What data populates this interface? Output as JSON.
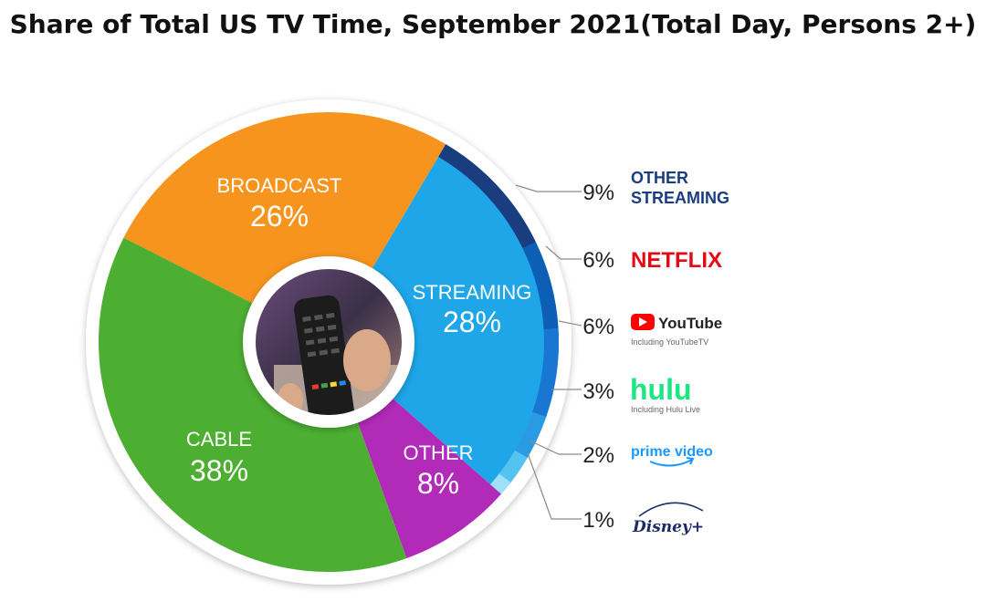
{
  "title": "Share of Total US TV Time, September 2021(Total Day, Persons 2+)",
  "chart_data": {
    "type": "pie",
    "slices": [
      {
        "label": "BROADCAST",
        "pct_label": "26%",
        "value": 26,
        "color": "#f7941d"
      },
      {
        "label": "STREAMING",
        "pct_label": "28%",
        "value": 28,
        "color": "#1ea6e8"
      },
      {
        "label": "OTHER",
        "pct_label": "8%",
        "value": 8,
        "color": "#b22bb8"
      },
      {
        "label": "CABLE",
        "pct_label": "38%",
        "value": 38,
        "color": "#4caf32"
      }
    ],
    "streaming_breakdown": [
      {
        "label": "OTHER STREAMING",
        "pct_label": "9%",
        "value": 9,
        "color": "#1a3d80"
      },
      {
        "label": "NETFLIX",
        "pct_label": "6%",
        "value": 6,
        "color": "#0d5fb5"
      },
      {
        "label": "YouTube",
        "sublabel": "Including YouTubeTV",
        "pct_label": "6%",
        "value": 6,
        "color": "#1976d2"
      },
      {
        "label": "hulu",
        "sublabel": "Including Hulu Live",
        "pct_label": "3%",
        "value": 3,
        "color": "#2a9be3"
      },
      {
        "label": "prime video",
        "pct_label": "2%",
        "value": 2,
        "color": "#55c3ef"
      },
      {
        "label": "Disney+",
        "pct_label": "1%",
        "value": 1,
        "color": "#9fdff7"
      }
    ]
  }
}
